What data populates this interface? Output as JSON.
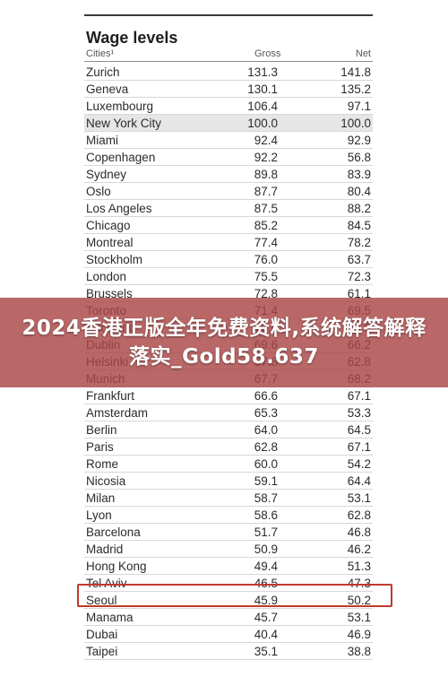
{
  "table": {
    "title": "Wage levels",
    "headers": {
      "city": "Cities¹",
      "gross": "Gross",
      "net": "Net"
    },
    "rows": [
      {
        "city": "Zurich",
        "gross": "131.3",
        "net": "141.8"
      },
      {
        "city": "Geneva",
        "gross": "130.1",
        "net": "135.2"
      },
      {
        "city": "Luxembourg",
        "gross": "106.4",
        "net": "97.1"
      },
      {
        "city": "New York City",
        "gross": "100.0",
        "net": "100.0"
      },
      {
        "city": "Miami",
        "gross": "92.4",
        "net": "92.9"
      },
      {
        "city": "Copenhagen",
        "gross": "92.2",
        "net": "56.8"
      },
      {
        "city": "Sydney",
        "gross": "89.8",
        "net": "83.9"
      },
      {
        "city": "Oslo",
        "gross": "87.7",
        "net": "80.4"
      },
      {
        "city": "Los Angeles",
        "gross": "87.5",
        "net": "88.2"
      },
      {
        "city": "Chicago",
        "gross": "85.2",
        "net": "84.5"
      },
      {
        "city": "Montreal",
        "gross": "77.4",
        "net": "78.2"
      },
      {
        "city": "Stockholm",
        "gross": "76.0",
        "net": "63.7"
      },
      {
        "city": "London",
        "gross": "75.5",
        "net": "72.3"
      },
      {
        "city": "Brussels",
        "gross": "72.8",
        "net": "61.1"
      },
      {
        "city": "Toronto",
        "gross": "71.4",
        "net": "69.5"
      },
      {
        "city": "Auckland",
        "gross": "70.6",
        "net": "69.8"
      },
      {
        "city": "Dublin",
        "gross": "69.6",
        "net": "66.2"
      },
      {
        "city": "Helsinki",
        "gross": "67.8",
        "net": "62.8"
      },
      {
        "city": "Munich",
        "gross": "67.7",
        "net": "68.2"
      },
      {
        "city": "Frankfurt",
        "gross": "66.6",
        "net": "67.1"
      },
      {
        "city": "Amsterdam",
        "gross": "65.3",
        "net": "53.3"
      },
      {
        "city": "Berlin",
        "gross": "64.0",
        "net": "64.5"
      },
      {
        "city": "Paris",
        "gross": "62.8",
        "net": "67.1"
      },
      {
        "city": "Rome",
        "gross": "60.0",
        "net": "54.2"
      },
      {
        "city": "Nicosia",
        "gross": "59.1",
        "net": "64.4"
      },
      {
        "city": "Milan",
        "gross": "58.7",
        "net": "53.1"
      },
      {
        "city": "Lyon",
        "gross": "58.6",
        "net": "62.8"
      },
      {
        "city": "Barcelona",
        "gross": "51.7",
        "net": "46.8"
      },
      {
        "city": "Madrid",
        "gross": "50.9",
        "net": "46.2"
      },
      {
        "city": "Hong Kong",
        "gross": "49.4",
        "net": "51.3"
      },
      {
        "city": "Tel Aviv",
        "gross": "46.5",
        "net": "47.3"
      },
      {
        "city": "Seoul",
        "gross": "45.9",
        "net": "50.2"
      },
      {
        "city": "Manama",
        "gross": "45.7",
        "net": "53.1"
      },
      {
        "city": "Dubai",
        "gross": "40.4",
        "net": "46.9"
      },
      {
        "city": "Taipei",
        "gross": "35.1",
        "net": "38.8"
      }
    ],
    "highlighted_row": "New York City",
    "boxed_row": "Hong Kong"
  },
  "banner": {
    "text": "2024香港正版全年免费资料,系统解答解释落实_Gold58.637"
  },
  "colors": {
    "banner_bg": "#aa4646",
    "box_border": "#c0392b",
    "row_highlight": "#e6e6e6"
  }
}
